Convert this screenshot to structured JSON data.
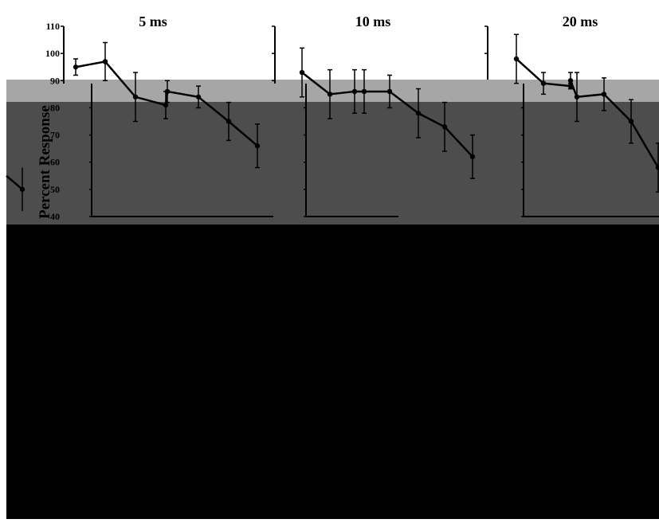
{
  "chart_data": {
    "type": "line",
    "ylabel": "Percent Response",
    "ylim": [
      40,
      110
    ],
    "yticks": [
      40,
      50,
      60,
      70,
      80,
      90,
      100,
      110
    ],
    "colors": {
      "light_band": "#a6a6a6",
      "dark_band": "#4d4d4d",
      "black_block": "#000000",
      "line": "#000000"
    },
    "panels": [
      {
        "title": "5 ms",
        "series": [
          {
            "values": [
              95,
              97,
              84,
              81,
              86,
              84,
              75,
              66
            ],
            "err": [
              3,
              7,
              9,
              5,
              4,
              4,
              7,
              8
            ]
          }
        ]
      },
      {
        "title": "10 ms",
        "series": [
          {
            "values": [
              93,
              85,
              86,
              86,
              86,
              78,
              73,
              62
            ],
            "err": [
              9,
              9,
              8,
              8,
              6,
              9,
              9,
              8
            ]
          }
        ]
      },
      {
        "title": "20 ms",
        "series": [
          {
            "values": [
              98,
              89,
              88,
              90,
              84,
              85,
              75,
              58
            ],
            "err": [
              9,
              4,
              1,
              3,
              9,
              6,
              8,
              9
            ]
          }
        ]
      }
    ],
    "partial_point": {
      "value": 50,
      "err": 8
    }
  }
}
